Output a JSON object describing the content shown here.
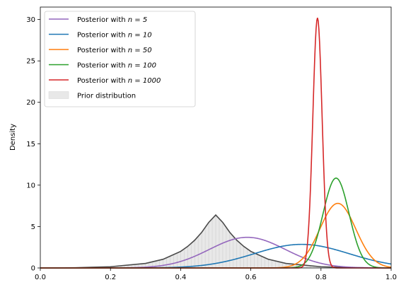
{
  "chart_data": {
    "type": "line",
    "title": "",
    "xlabel": "",
    "ylabel": "Density",
    "xlim": [
      0,
      1
    ],
    "ylim": [
      0,
      31.5
    ],
    "xticks": [
      "0.0",
      "0.2",
      "0.4",
      "0.6",
      "0.8",
      "1.0"
    ],
    "yticks": [
      "0",
      "5",
      "10",
      "15",
      "20",
      "25",
      "30"
    ],
    "grid": false,
    "legend_position": "top-left",
    "prior": {
      "name": "Prior distribution",
      "mode": 0.5,
      "peak": 6.4,
      "fill_color": "#e8e8e8",
      "line_color": "#4a4a4a",
      "x": [
        0,
        0.1,
        0.2,
        0.3,
        0.35,
        0.4,
        0.42,
        0.44,
        0.46,
        0.48,
        0.5,
        0.52,
        0.54,
        0.56,
        0.58,
        0.6,
        0.65,
        0.7,
        0.8,
        0.9,
        1.0
      ],
      "y": [
        0.0,
        0.03,
        0.15,
        0.55,
        1.05,
        2.0,
        2.6,
        3.35,
        4.3,
        5.5,
        6.4,
        5.5,
        4.3,
        3.35,
        2.6,
        2.0,
        1.05,
        0.55,
        0.15,
        0.03,
        0.0
      ]
    },
    "series": [
      {
        "name": "Posterior with n = 5",
        "label_prefix": "Posterior with ",
        "label_math": "n = 5",
        "color": "#9467bd",
        "mean": 0.59,
        "sd": 0.108,
        "peak": 3.7
      },
      {
        "name": "Posterior with n = 10",
        "label_prefix": "Posterior with ",
        "label_math": "n = 10",
        "color": "#1f77b4",
        "mean": 0.745,
        "sd": 0.135,
        "peak": 2.85
      },
      {
        "name": "Posterior with n = 50",
        "label_prefix": "Posterior with ",
        "label_math": "n = 50",
        "color": "#ff7f0e",
        "mean": 0.848,
        "sd": 0.051,
        "peak": 7.8
      },
      {
        "name": "Posterior with n = 100",
        "label_prefix": "Posterior with ",
        "label_math": "n = 100",
        "color": "#2ca02c",
        "mean": 0.843,
        "sd": 0.037,
        "peak": 10.85
      },
      {
        "name": "Posterior with n = 1000",
        "label_prefix": "Posterior with ",
        "label_math": "n = 1000",
        "color": "#d62728",
        "mean": 0.79,
        "sd": 0.0132,
        "peak": 30.2
      }
    ]
  }
}
